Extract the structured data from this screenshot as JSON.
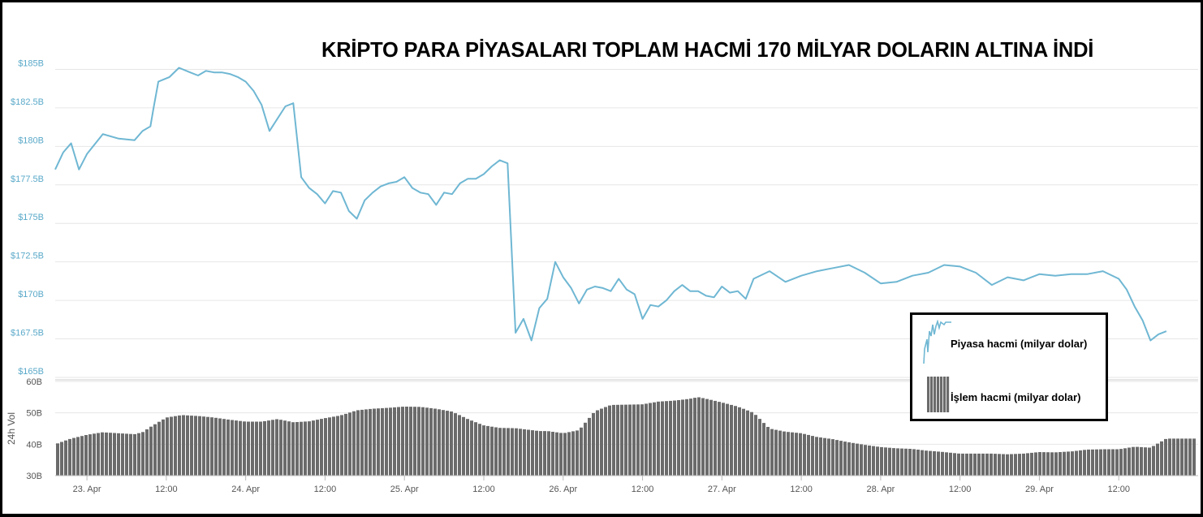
{
  "title": "KRİPTO PARA PİYASALARI TOPLAM HACMİ 170 MİLYAR DOLARIN ALTINA İNDİ",
  "legend": {
    "price_label": "Piyasa hacmi (milyar dolar)",
    "volume_label": "İşlem hacmi (milyar dolar)"
  },
  "colors": {
    "line": "#6fb7d3",
    "axis_text": "#5aa9c9",
    "bars": "#6b6b6b",
    "grid": "#e6e6e6"
  },
  "chart_data": [
    {
      "type": "line",
      "name": "market-cap",
      "ylim": [
        165,
        187.5
      ],
      "yticks": [
        "$165B",
        "$167.5B",
        "$170B",
        "$172.5B",
        "$175B",
        "$177.5B",
        "$180B",
        "$182.5B",
        "$185B"
      ],
      "ytick_values": [
        165,
        167.5,
        170,
        172.5,
        175,
        177.5,
        180,
        182.5,
        185
      ],
      "xlim": [
        0,
        7.2
      ],
      "xticks": [
        "23. Apr",
        "12:00",
        "24. Apr",
        "12:00",
        "25. Apr",
        "12:00",
        "26. Apr",
        "12:00",
        "27. Apr",
        "12:00",
        "28. Apr",
        "12:00",
        "29. Apr",
        "12:00"
      ],
      "xtick_values": [
        0.2,
        0.7,
        1.2,
        1.7,
        2.2,
        2.7,
        3.2,
        3.7,
        4.2,
        4.7,
        5.2,
        5.7,
        6.2,
        6.7
      ],
      "x": [
        0,
        0.05,
        0.1,
        0.15,
        0.2,
        0.3,
        0.4,
        0.5,
        0.55,
        0.6,
        0.62,
        0.65,
        0.72,
        0.78,
        0.85,
        0.9,
        0.95,
        1.0,
        1.05,
        1.1,
        1.15,
        1.2,
        1.25,
        1.3,
        1.35,
        1.4,
        1.45,
        1.5,
        1.55,
        1.6,
        1.65,
        1.7,
        1.75,
        1.8,
        1.85,
        1.9,
        1.95,
        2.0,
        2.05,
        2.1,
        2.15,
        2.2,
        2.25,
        2.3,
        2.35,
        2.4,
        2.45,
        2.5,
        2.55,
        2.6,
        2.65,
        2.7,
        2.75,
        2.8,
        2.85,
        2.9,
        2.95,
        3.0,
        3.05,
        3.1,
        3.15,
        3.2,
        3.25,
        3.3,
        3.35,
        3.4,
        3.45,
        3.5,
        3.55,
        3.6,
        3.65,
        3.7,
        3.75,
        3.8,
        3.85,
        3.9,
        3.95,
        4.0,
        4.05,
        4.1,
        4.15,
        4.2,
        4.25,
        4.3,
        4.35,
        4.4,
        4.5,
        4.6,
        4.7,
        4.8,
        4.9,
        5.0,
        5.1,
        5.2,
        5.3,
        5.4,
        5.5,
        5.6,
        5.7,
        5.8,
        5.9,
        6.0,
        6.1,
        6.2,
        6.3,
        6.4,
        6.5,
        6.6,
        6.7,
        6.75,
        6.8,
        6.85,
        6.9,
        6.95,
        7.0
      ],
      "values": [
        178.5,
        179.6,
        180.2,
        178.5,
        179.5,
        180.8,
        180.5,
        180.4,
        181.0,
        181.3,
        182.5,
        184.2,
        184.5,
        185.1,
        184.8,
        184.6,
        184.9,
        184.8,
        184.8,
        184.7,
        184.5,
        184.2,
        183.6,
        182.7,
        181.0,
        181.8,
        182.6,
        182.8,
        178.0,
        177.3,
        176.9,
        176.3,
        177.1,
        177.0,
        175.8,
        175.3,
        176.5,
        177.0,
        177.4,
        177.6,
        177.7,
        178.0,
        177.3,
        177.0,
        176.9,
        176.2,
        177.0,
        176.9,
        177.6,
        177.9,
        177.9,
        178.2,
        178.7,
        179.1,
        178.9,
        167.9,
        168.8,
        167.4,
        169.5,
        170.1,
        172.5,
        171.5,
        170.8,
        169.8,
        170.7,
        170.9,
        170.8,
        170.6,
        171.4,
        170.7,
        170.4,
        168.8,
        169.7,
        169.6,
        170.0,
        170.6,
        171.0,
        170.6,
        170.6,
        170.3,
        170.2,
        170.9,
        170.5,
        170.6,
        170.1,
        171.4,
        171.9,
        171.2,
        171.6,
        171.9,
        172.1,
        172.3,
        171.8,
        171.1,
        171.2,
        171.6,
        171.8,
        172.3,
        172.2,
        171.8,
        171.0,
        171.5,
        171.3,
        171.7,
        171.6,
        171.7,
        171.7,
        171.9,
        171.4,
        170.7,
        169.6,
        168.7,
        167.4,
        167.8,
        168.0
      ]
    },
    {
      "type": "bar",
      "name": "24h-vol",
      "ylabel": "24h Vol",
      "ylim": [
        30,
        60
      ],
      "yticks": [
        "30B",
        "40B",
        "50B",
        "60B"
      ],
      "ytick_values": [
        30,
        40,
        50,
        60
      ],
      "x": [
        0,
        0.1,
        0.2,
        0.3,
        0.4,
        0.5,
        0.55,
        0.6,
        0.7,
        0.8,
        0.9,
        1.0,
        1.1,
        1.2,
        1.3,
        1.4,
        1.5,
        1.6,
        1.7,
        1.8,
        1.9,
        2.0,
        2.1,
        2.2,
        2.3,
        2.4,
        2.5,
        2.6,
        2.7,
        2.8,
        2.9,
        3.0,
        3.05,
        3.1,
        3.2,
        3.3,
        3.4,
        3.5,
        3.6,
        3.7,
        3.8,
        3.9,
        4.0,
        4.05,
        4.1,
        4.2,
        4.3,
        4.4,
        4.5,
        4.6,
        4.7,
        4.8,
        4.9,
        5.0,
        5.1,
        5.2,
        5.3,
        5.4,
        5.5,
        5.6,
        5.7,
        5.8,
        5.9,
        6.0,
        6.1,
        6.2,
        6.3,
        6.4,
        6.5,
        6.6,
        6.7,
        6.8,
        6.9,
        7.0
      ],
      "values": [
        40.0,
        41.8,
        43.0,
        43.8,
        43.5,
        43.2,
        43.8,
        45.5,
        48.5,
        49.3,
        49.0,
        48.5,
        47.8,
        47.2,
        47.2,
        48.0,
        47.0,
        47.3,
        48.3,
        49.2,
        50.8,
        51.3,
        51.6,
        52.0,
        51.9,
        51.3,
        50.4,
        48.0,
        46.0,
        45.2,
        45.1,
        44.5,
        44.2,
        44.2,
        43.5,
        44.5,
        50.5,
        52.5,
        52.6,
        52.7,
        53.6,
        53.9,
        54.5,
        55.0,
        54.5,
        53.3,
        52.0,
        50.0,
        45.0,
        44.0,
        43.5,
        42.3,
        41.6,
        40.6,
        39.8,
        39.1,
        38.7,
        38.5,
        37.9,
        37.5,
        37.0,
        37.0,
        37.0,
        36.8,
        37.0,
        37.5,
        37.4,
        37.7,
        38.3,
        38.4,
        38.4,
        39.2,
        38.9,
        41.8
      ]
    }
  ]
}
